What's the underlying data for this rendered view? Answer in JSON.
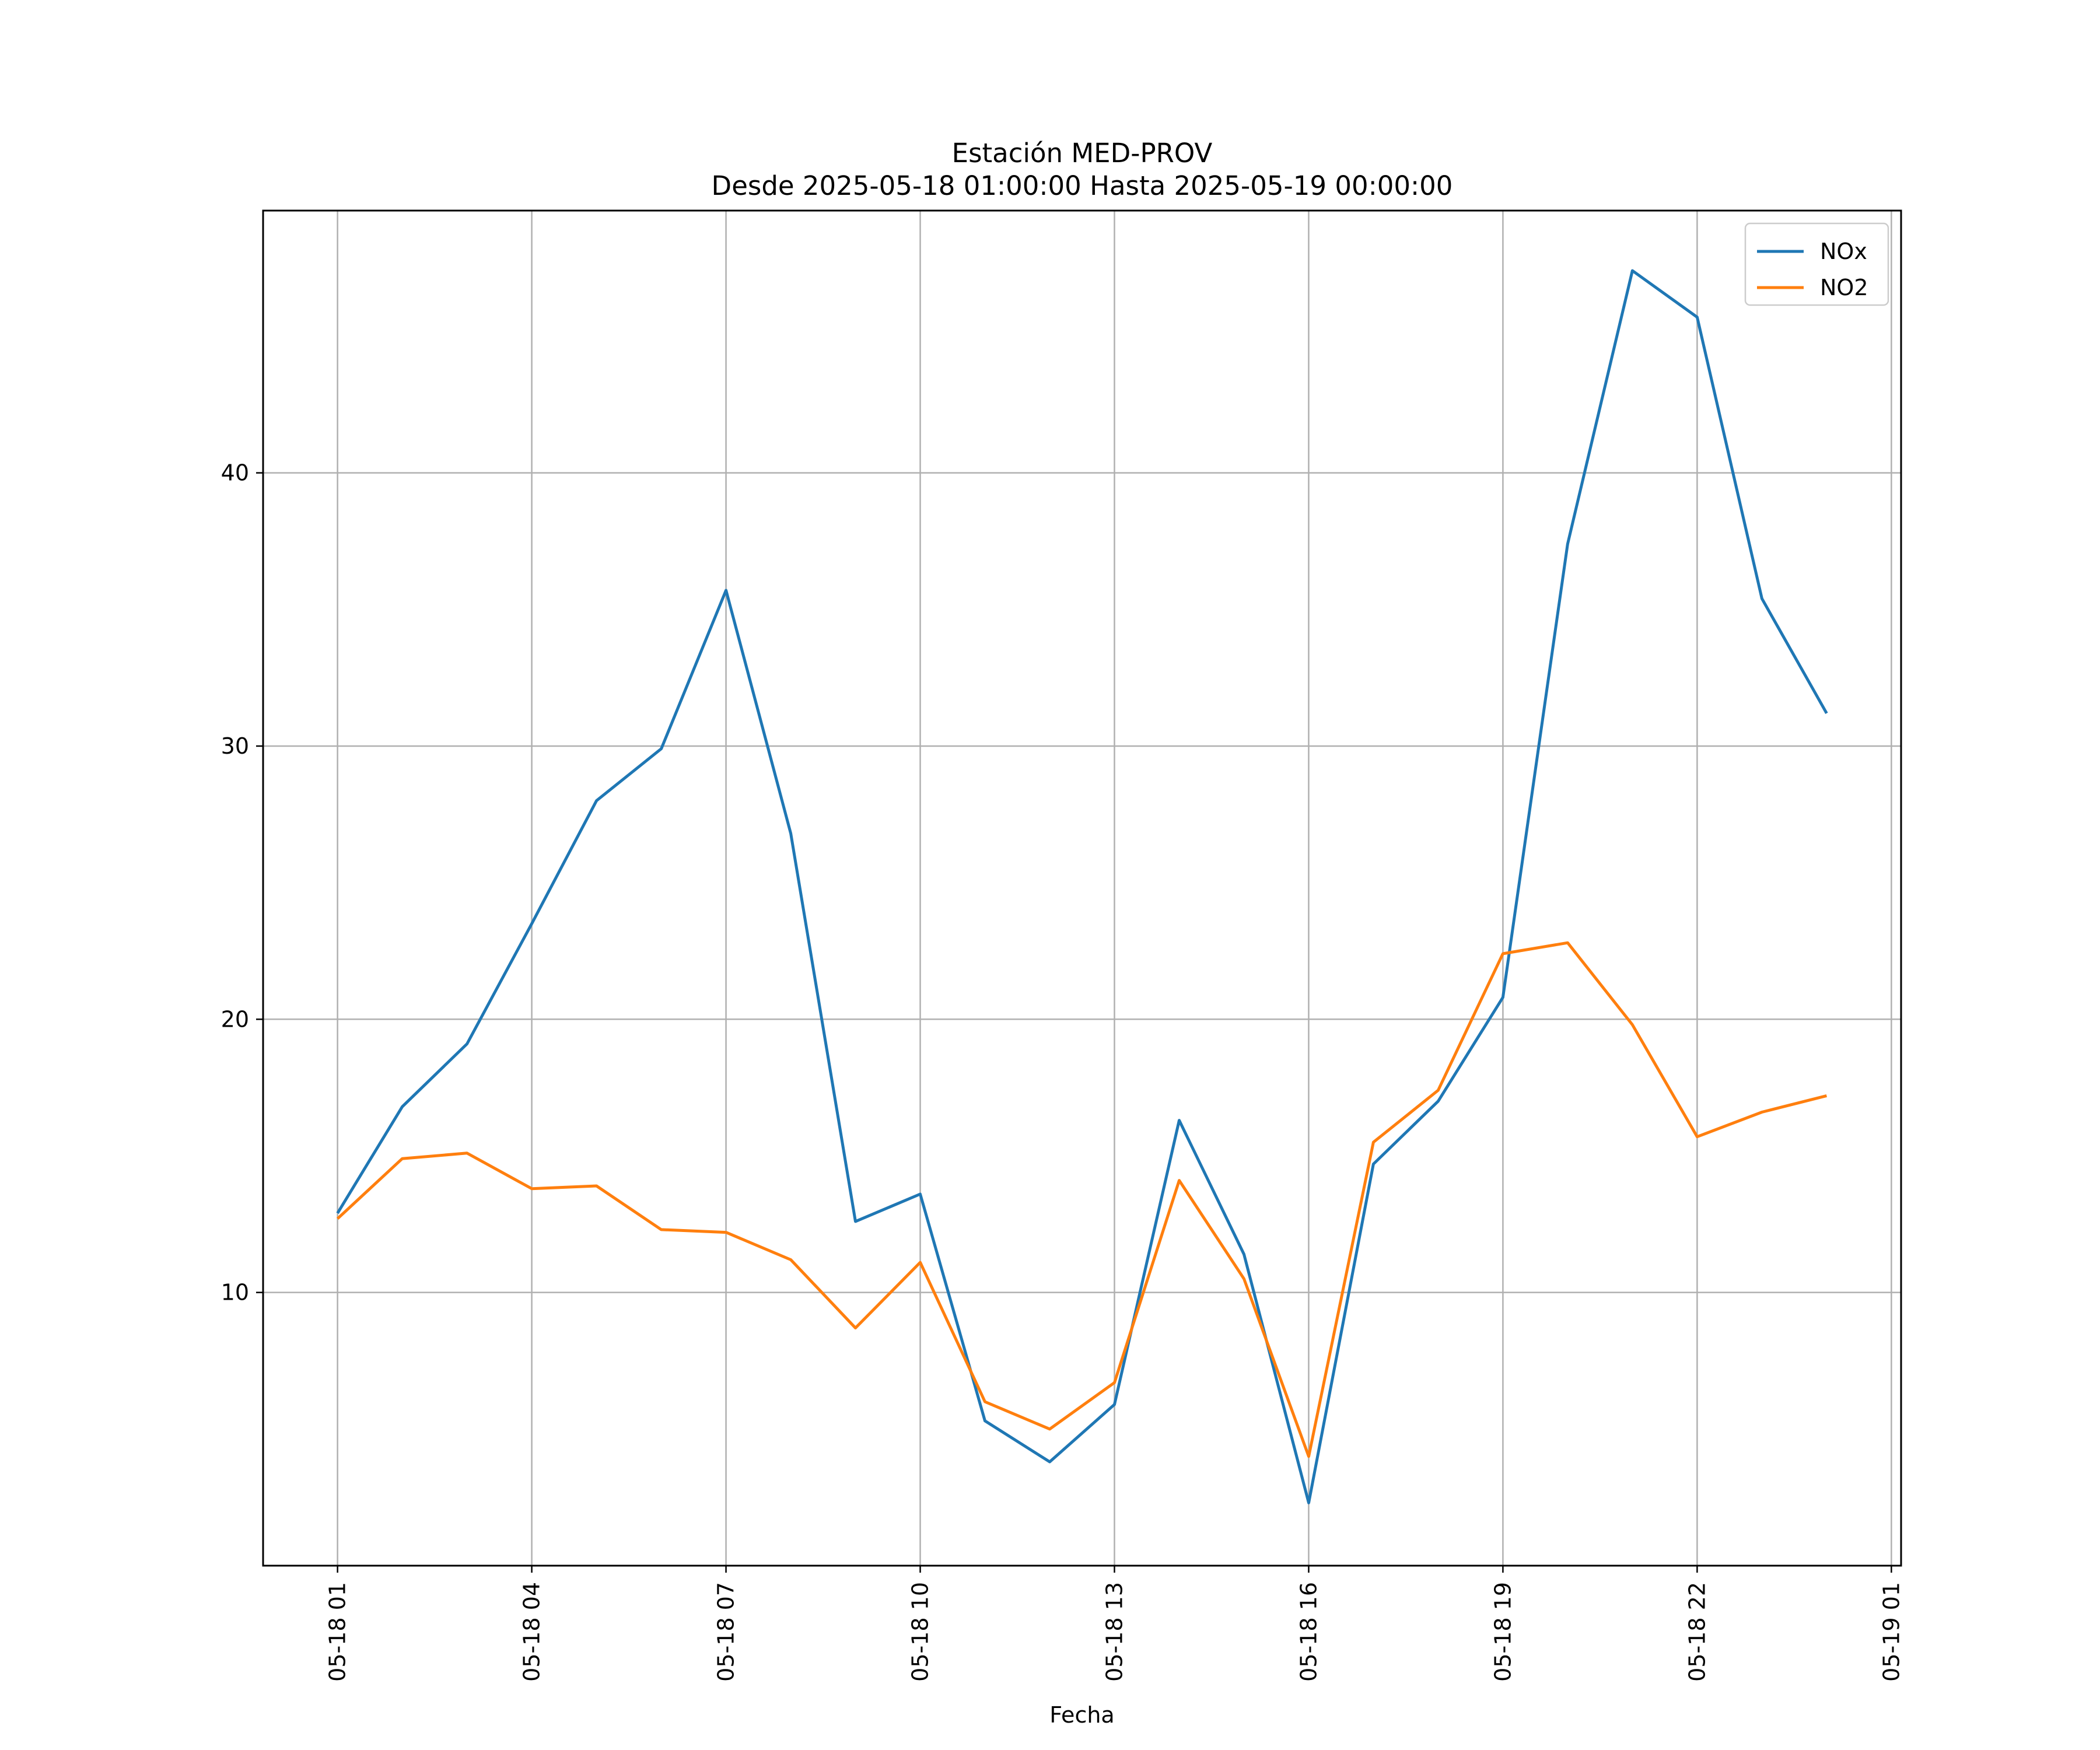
{
  "chart_data": {
    "type": "line",
    "title": "Estación MED-PROV",
    "subtitle": "Desde 2025-05-18 01:00:00 Hasta 2025-05-19 00:00:00",
    "xlabel": "Fecha",
    "ylabel": "",
    "x": [
      "2025-05-18 01:00",
      "2025-05-18 02:00",
      "2025-05-18 03:00",
      "2025-05-18 04:00",
      "2025-05-18 05:00",
      "2025-05-18 06:00",
      "2025-05-18 07:00",
      "2025-05-18 08:00",
      "2025-05-18 09:00",
      "2025-05-18 10:00",
      "2025-05-18 11:00",
      "2025-05-18 12:00",
      "2025-05-18 13:00",
      "2025-05-18 14:00",
      "2025-05-18 15:00",
      "2025-05-18 16:00",
      "2025-05-18 17:00",
      "2025-05-18 18:00",
      "2025-05-18 19:00",
      "2025-05-18 20:00",
      "2025-05-18 21:00",
      "2025-05-18 22:00",
      "2025-05-18 23:00",
      "2025-05-19 00:00"
    ],
    "series": [
      {
        "name": "NOx",
        "color": "#1f77b4",
        "values": [
          12.9,
          16.8,
          19.1,
          23.5,
          28.0,
          29.9,
          35.7,
          26.8,
          12.6,
          13.6,
          5.3,
          3.8,
          5.9,
          16.3,
          11.4,
          2.3,
          14.7,
          17.0,
          20.8,
          37.4,
          47.4,
          45.7,
          35.4,
          31.2
        ]
      },
      {
        "name": "NO2",
        "color": "#ff7f0e",
        "values": [
          12.7,
          14.9,
          15.1,
          13.8,
          13.9,
          12.3,
          12.2,
          11.2,
          8.7,
          11.1,
          6.0,
          5.0,
          6.7,
          14.1,
          10.5,
          4.0,
          15.5,
          17.4,
          22.4,
          22.8,
          19.8,
          15.7,
          16.6,
          17.2
        ]
      }
    ],
    "x_ticks": [
      "05-18 01",
      "05-18 04",
      "05-18 07",
      "05-18 10",
      "05-18 13",
      "05-18 16",
      "05-18 19",
      "05-18 22",
      "05-19 01"
    ],
    "y_ticks": [
      "10",
      "20",
      "30",
      "40"
    ],
    "xlim": [
      "2025-05-17 23:51",
      "2025-05-19 01:09"
    ],
    "ylim": [
      0.0,
      49.6
    ],
    "grid": true,
    "legend": "top-right"
  }
}
